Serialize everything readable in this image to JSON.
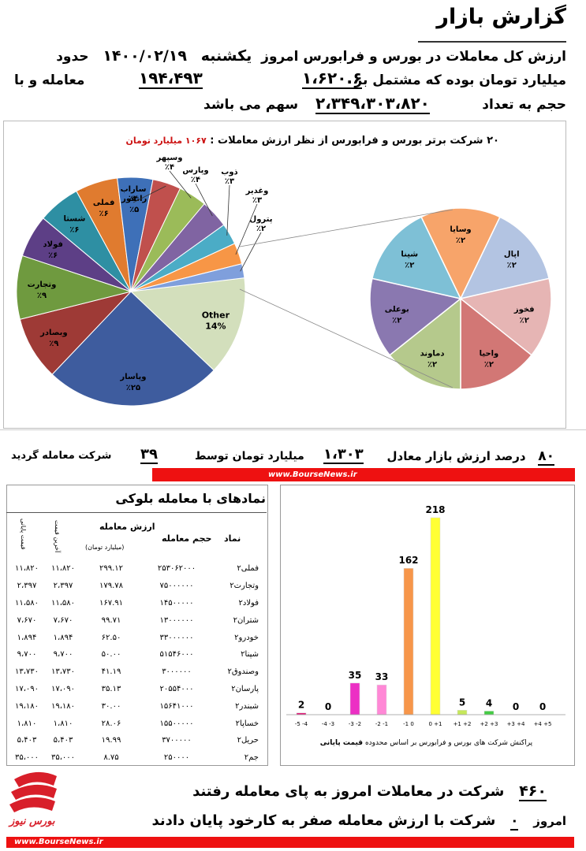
{
  "header": {
    "title": "گزارش بازار",
    "line1": {
      "a": "حدود",
      "b": "۱۴۰۰/۰۲/۱۹",
      "c": "یکشنبه",
      "d": "ارزش کل معاملات در بورس و فرابورس امروز"
    },
    "line2": {
      "value": "۱،۶۲۰.۶",
      "a": "میلیارد تومان بوده که مشتمل بر",
      "count": "۱۹۴،۴۹۳",
      "b": "معامله و با"
    },
    "line3": {
      "a": "حجم به تعداد",
      "volume": "۲،۳۴۹،۳۰۳،۸۲۰",
      "b": "سهم می باشد"
    }
  },
  "chart_data": [
    {
      "type": "pie",
      "title": "۲۰ شرکت برتر بورس و فرابورس از نظر ارزش معاملات :",
      "subtitle": "۱۰۶۷ میلیارد تومان",
      "slices": [
        {
          "label": "وپاسار",
          "value": 25,
          "display": "٪۲۵",
          "color": "#3e5c9e"
        },
        {
          "label": "وبصادر",
          "value": 9,
          "display": "٪۹",
          "color": "#9e3a36"
        },
        {
          "label": "وتجارت",
          "value": 9,
          "display": "٪۹",
          "color": "#6f9a3f"
        },
        {
          "label": "فولاد",
          "value": 6,
          "display": "٪۶",
          "color": "#5d3f86"
        },
        {
          "label": "شستا",
          "value": 6,
          "display": "٪۶",
          "color": "#2e8fa3"
        },
        {
          "label": "فملی",
          "value": 6,
          "display": "٪۶",
          "color": "#e07b2f"
        },
        {
          "label": "رانفور",
          "value": 5,
          "display": "٪۵",
          "color": "#3e70b8"
        },
        {
          "label": "ساراب",
          "value": 4,
          "display": "٪۴",
          "color": "#c0504d"
        },
        {
          "label": "وسپهر",
          "value": 4,
          "display": "٪۴",
          "color": "#9bbb59"
        },
        {
          "label": "وپارس",
          "value": 4,
          "display": "٪۴",
          "color": "#8064a2"
        },
        {
          "label": "ذوب",
          "value": 3,
          "display": "٪۳",
          "color": "#4bacc6"
        },
        {
          "label": "وغدیر",
          "value": 3,
          "display": "٪۳",
          "color": "#f79646"
        },
        {
          "label": "پترول",
          "value": 2,
          "display": "٪۲",
          "color": "#7f9fdc"
        },
        {
          "label": "Other",
          "value": 14,
          "display": "14%",
          "color": "#d3dfbc"
        }
      ]
    },
    {
      "type": "pie",
      "slices": [
        {
          "label": "وسایا",
          "value": 2,
          "display": "٪۲",
          "color": "#f7a46a"
        },
        {
          "label": "اپال",
          "value": 2,
          "display": "٪۲",
          "color": "#b3c4e2"
        },
        {
          "label": "فخوز",
          "value": 2,
          "display": "٪۲",
          "color": "#e6b5b4"
        },
        {
          "label": "واحیا",
          "value": 2,
          "display": "٪۲",
          "color": "#d27775"
        },
        {
          "label": "دماوند",
          "value": 2,
          "display": "٪۲",
          "color": "#b5c98c"
        },
        {
          "label": "بوعلی",
          "value": 2,
          "display": "٪۲",
          "color": "#8a78b0"
        },
        {
          "label": "شپنا",
          "value": 2,
          "display": "٪۲",
          "color": "#7ec0d6"
        }
      ]
    },
    {
      "type": "bar",
      "xlabel": "پراکنش شرکت های بورس و فرابورس بر اساس محدوده",
      "xlabel_bold": "قیمت پایانی",
      "categories": [
        "-5 -4",
        "-4 -3",
        "-3 -2",
        "-2 -1",
        "-1 0",
        "0 +1",
        "+1 +2",
        "+2 +3",
        "+3 +4",
        "+4 +5"
      ],
      "values": [
        2,
        0,
        35,
        33,
        162,
        218,
        5,
        4,
        0,
        0
      ],
      "colors": [
        "#e0207a",
        "#e0207a",
        "#ec2fc4",
        "#ff88d6",
        "#f7964a",
        "#ffff33",
        "#c6e85a",
        "#44cc44",
        "#2d9a3c",
        "#2d9a3c"
      ],
      "ylim": [
        0,
        218
      ]
    },
    {
      "type": "table",
      "title": "نمادهای با معامله بلوکی",
      "columns": [
        "نماد",
        "حجم معامله",
        "ارزش معامله",
        "آخرین قیمت",
        "قیمت پایانی"
      ],
      "value_unit": "(میلیارد تومان)",
      "rows": [
        [
          "فملی۲",
          "۲۵۳۰۶۲۰۰۰",
          "۲۹۹.۱۲",
          "۱۱،۸۲۰",
          "۱۱،۸۲۰"
        ],
        [
          "وتجارت۲",
          "۷۵۰۰۰۰۰۰",
          "۱۷۹.۷۸",
          "۲،۳۹۷",
          "۲،۳۹۷"
        ],
        [
          "فولاد۲",
          "۱۴۵۰۰۰۰۰",
          "۱۶۷.۹۱",
          "۱۱،۵۸۰",
          "۱۱،۵۸۰"
        ],
        [
          "شتران۲",
          "۱۳۰۰۰۰۰۰",
          "۹۹.۷۱",
          "۷،۶۷۰",
          "۷،۶۷۰"
        ],
        [
          "خودرو۲",
          "۳۳۰۰۰۰۰۰",
          "۶۲.۵۰",
          "۱،۸۹۴",
          "۱،۸۹۴"
        ],
        [
          "شپنا۲",
          "۵۱۵۴۶۰۰۰",
          "۵۰.۰۰",
          "۹،۷۰۰",
          "۹،۷۰۰"
        ],
        [
          "وصندوق۲",
          "۳۰۰۰۰۰۰",
          "۴۱.۱۹",
          "۱۳،۷۳۰",
          "۱۳،۷۳۰"
        ],
        [
          "پارسان۲",
          "۲۰۵۵۴۰۰۰",
          "۳۵.۱۳",
          "۱۷،۰۹۰",
          "۱۷،۰۹۰"
        ],
        [
          "شبندر۲",
          "۱۵۶۴۱۰۰۰",
          "۳۰.۰۰",
          "۱۹،۱۸۰",
          "۱۹،۱۸۰"
        ],
        [
          "خساپا۲",
          "۱۵۵۰۰۰۰۰",
          "۲۸.۰۶",
          "۱،۸۱۰",
          "۱،۸۱۰"
        ],
        [
          "حریل۲",
          "۳۷۰۰۰۰۰",
          "۱۹.۹۹",
          "۵،۴۰۳",
          "۵،۴۰۳"
        ],
        [
          "جم۲",
          "۲۵۰۰۰۰",
          "۸.۷۵",
          "۳۵،۰۰۰",
          "۳۵،۰۰۰"
        ]
      ]
    }
  ],
  "summary": {
    "pct": "۸۰",
    "a": "درصد ارزش بازار معادل",
    "value": "۱،۳۰۳",
    "b": "میلیارد تومان توسط",
    "count": "۳۹",
    "c": "شرکت معامله گردید"
  },
  "footer": {
    "site": "www.BourseNews.ir",
    "traded_count": "۴۶۰",
    "traded_text": "شرکت در معاملات امروز به پای معامله رفتند",
    "zero_a": "امروز",
    "zero_count": "۰",
    "zero_text": "شرکت با ارزش معامله صفر به کارخود پایان دادند",
    "logo_text": "بورس نیوز"
  }
}
